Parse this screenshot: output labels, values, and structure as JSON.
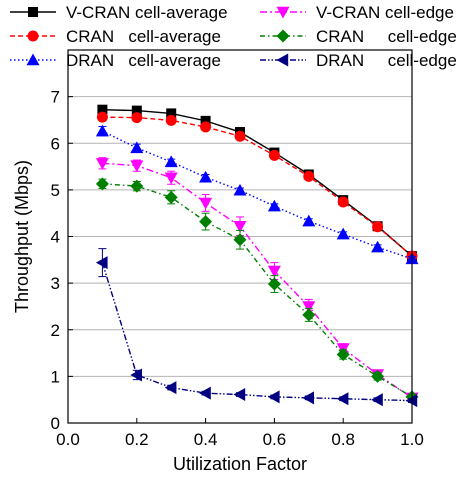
{
  "chart_data": {
    "type": "line",
    "xlabel": "Utilization Factor",
    "ylabel": "Throughput (Mbps)",
    "xlim": [
      0.0,
      1.0
    ],
    "ylim": [
      0,
      8
    ],
    "xticks": [
      "0.0",
      "0.2",
      "0.4",
      "0.6",
      "0.8",
      "1.0"
    ],
    "yticks": [
      "0",
      "1",
      "2",
      "3",
      "4",
      "5",
      "6",
      "7"
    ],
    "grid": "horizontal",
    "legend_position": "top",
    "x": [
      0.1,
      0.2,
      0.3,
      0.4,
      0.5,
      0.6,
      0.7,
      0.8,
      0.9,
      1.0
    ],
    "series": [
      {
        "name": "V-CRAN cell-average",
        "color": "#000000",
        "marker": "square",
        "dash": "solid",
        "values": [
          6.72,
          6.7,
          6.64,
          6.48,
          6.24,
          5.8,
          5.33,
          4.78,
          4.22,
          3.58
        ],
        "errors": [
          0.05,
          0.05,
          0.05,
          0.05,
          0.05,
          0.05,
          0.06,
          0.06,
          0.05,
          0.05
        ]
      },
      {
        "name": "V-CRAN cell-edge",
        "color": "#ff00ff",
        "marker": "triangle-down",
        "dash": "dashdot",
        "values": [
          5.57,
          5.52,
          5.26,
          4.72,
          4.22,
          3.26,
          2.5,
          1.6,
          1.04,
          0.54
        ],
        "errors": [
          0.12,
          0.12,
          0.14,
          0.18,
          0.2,
          0.18,
          0.15,
          0.1,
          0.08,
          0.05
        ]
      },
      {
        "name": "CRAN   cell-average",
        "color": "#ff0000",
        "marker": "circle",
        "dash": "dashed",
        "values": [
          6.56,
          6.55,
          6.49,
          6.35,
          6.15,
          5.74,
          5.29,
          4.74,
          4.21,
          3.58
        ],
        "errors": [
          0.06,
          0.06,
          0.06,
          0.06,
          0.06,
          0.06,
          0.06,
          0.06,
          0.05,
          0.05
        ]
      },
      {
        "name": "CRAN     cell-edge",
        "color": "#008000",
        "marker": "diamond",
        "dash": "dashdotted",
        "values": [
          5.13,
          5.08,
          4.84,
          4.32,
          3.93,
          2.98,
          2.32,
          1.47,
          1.0,
          0.56
        ],
        "errors": [
          0.1,
          0.1,
          0.14,
          0.18,
          0.2,
          0.18,
          0.14,
          0.1,
          0.08,
          0.05
        ]
      },
      {
        "name": "DRAN   cell-average",
        "color": "#0000ff",
        "marker": "triangle-up",
        "dash": "dotted",
        "values": [
          6.26,
          5.9,
          5.6,
          5.27,
          4.99,
          4.65,
          4.33,
          4.05,
          3.77,
          3.52
        ],
        "errors": [
          0.1,
          0.08,
          0.06,
          0.06,
          0.05,
          0.05,
          0.05,
          0.05,
          0.05,
          0.05
        ]
      },
      {
        "name": "DRAN     cell-edge",
        "color": "#000080",
        "marker": "triangle-left",
        "dash": "dashdotdot",
        "values": [
          3.44,
          1.03,
          0.76,
          0.64,
          0.61,
          0.56,
          0.54,
          0.52,
          0.5,
          0.48
        ],
        "errors": [
          0.3,
          0.1,
          0.05,
          0.04,
          0.04,
          0.04,
          0.04,
          0.04,
          0.04,
          0.04
        ]
      }
    ]
  }
}
